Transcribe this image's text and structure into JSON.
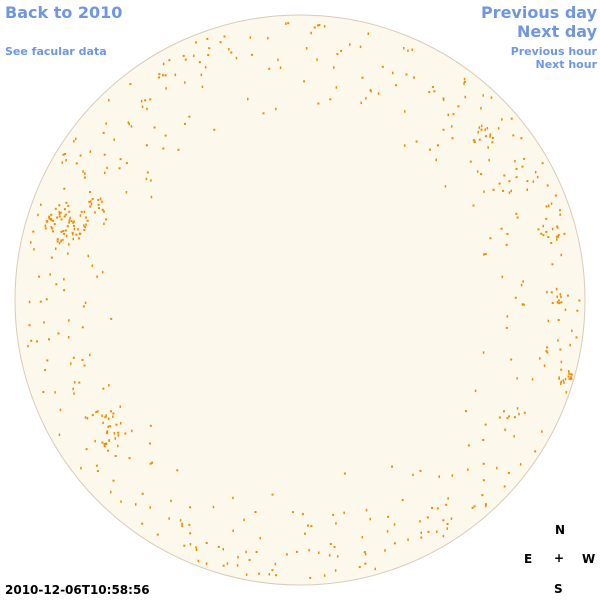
{
  "nav": {
    "back_label": "Back to 2010",
    "facular_label": "See facular data",
    "prev_day_label": "Previous day",
    "next_day_label": "Next day",
    "prev_hour_label": "Previous hour",
    "next_hour_label": "Next hour"
  },
  "timestamp": "2010-12-06T10:58:56",
  "compass": {
    "north": "N",
    "east": "E",
    "center": "+",
    "west": "W",
    "south": "S"
  },
  "colors": {
    "link": "#6f96e0",
    "disk_fill": "#fdf8ec",
    "disk_stroke": "#d8ccb8",
    "facula": "#f08c00"
  }
}
